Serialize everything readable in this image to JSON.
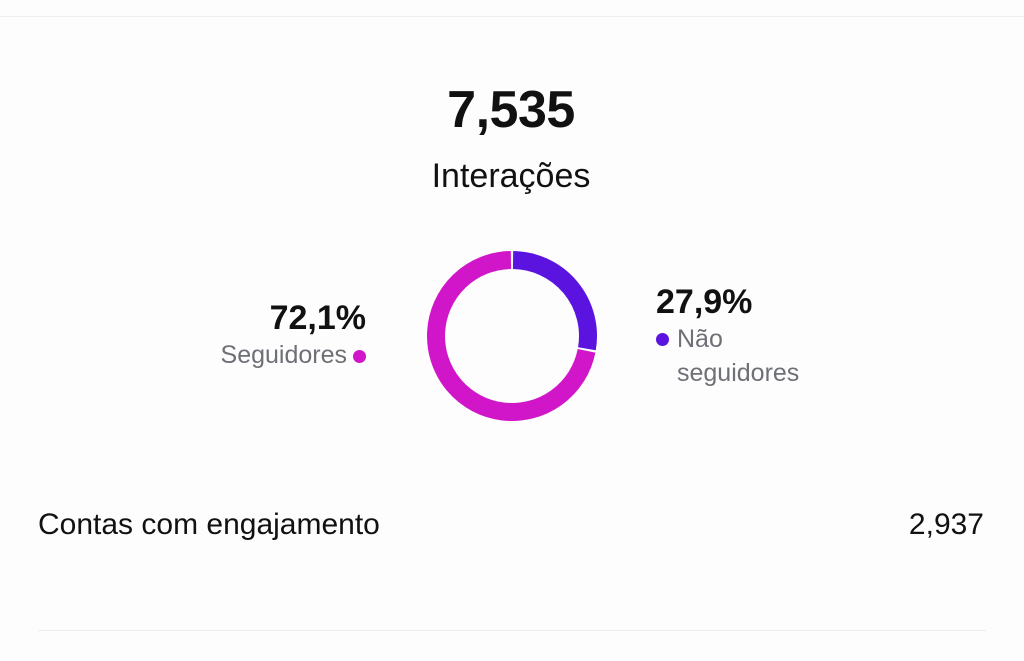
{
  "summary": {
    "total_value": "7,535",
    "total_label": "Interações"
  },
  "breakdown": {
    "followers": {
      "percent": "72,1%",
      "label": "Seguidores",
      "value": 72.1,
      "color": "#d016c8"
    },
    "non_followers": {
      "percent": "27,9%",
      "label_line1": "Não",
      "label_line2": "seguidores",
      "value": 27.9,
      "color": "#5b14e0"
    }
  },
  "metric": {
    "label": "Contas com engajamento",
    "value": "2,937"
  },
  "chart_data": {
    "type": "pie",
    "categories": [
      "Seguidores",
      "Não seguidores"
    ],
    "values": [
      72.1,
      27.9
    ],
    "colors": [
      "#d016c8",
      "#5b14e0"
    ]
  }
}
